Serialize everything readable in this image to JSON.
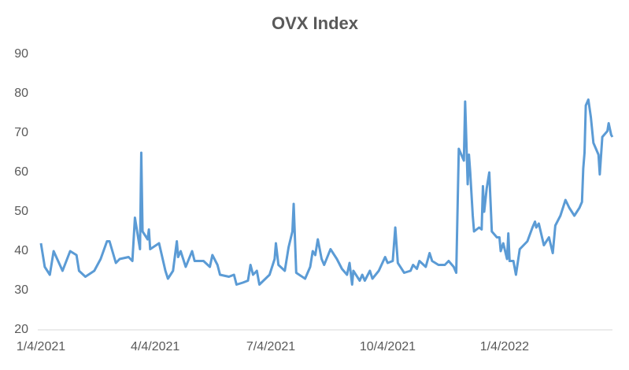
{
  "chart_data": {
    "type": "line",
    "title": "OVX Index",
    "color": "#5b9bd5",
    "x": [
      "2021-01-04",
      "2021-01-07",
      "2021-01-11",
      "2021-01-14",
      "2021-01-21",
      "2021-01-27",
      "2021-02-01",
      "2021-02-03",
      "2021-02-08",
      "2021-02-15",
      "2021-02-20",
      "2021-02-25",
      "2021-02-27",
      "2021-03-04",
      "2021-03-07",
      "2021-03-14",
      "2021-03-17",
      "2021-03-19",
      "2021-03-23",
      "2021-03-24",
      "2021-03-25",
      "2021-03-29",
      "2021-03-30",
      "2021-03-31",
      "2021-04-07",
      "2021-04-12",
      "2021-04-14",
      "2021-04-18",
      "2021-04-21",
      "2021-04-22",
      "2021-04-24",
      "2021-04-28",
      "2021-05-03",
      "2021-05-05",
      "2021-05-12",
      "2021-05-17",
      "2021-05-19",
      "2021-05-23",
      "2021-05-25",
      "2021-06-01",
      "2021-06-05",
      "2021-06-07",
      "2021-06-12",
      "2021-06-16",
      "2021-06-18",
      "2021-06-20",
      "2021-06-23",
      "2021-06-25",
      "2021-07-03",
      "2021-07-07",
      "2021-07-08",
      "2021-07-10",
      "2021-07-15",
      "2021-07-18",
      "2021-07-21",
      "2021-07-22",
      "2021-07-24",
      "2021-07-31",
      "2021-08-04",
      "2021-08-06",
      "2021-08-08",
      "2021-08-10",
      "2021-08-13",
      "2021-08-15",
      "2021-08-20",
      "2021-08-25",
      "2021-08-29",
      "2021-09-02",
      "2021-09-04",
      "2021-09-06",
      "2021-09-07",
      "2021-09-12",
      "2021-09-14",
      "2021-09-16",
      "2021-09-20",
      "2021-09-22",
      "2021-09-27",
      "2021-10-02",
      "2021-10-04",
      "2021-10-08",
      "2021-10-10",
      "2021-10-12",
      "2021-10-17",
      "2021-10-22",
      "2021-10-24",
      "2021-10-27",
      "2021-10-29",
      "2021-11-03",
      "2021-11-06",
      "2021-11-08",
      "2021-11-13",
      "2021-11-18",
      "2021-11-21",
      "2021-11-25",
      "2021-11-27",
      "2021-11-29",
      "2021-12-03",
      "2021-12-04",
      "2021-12-06",
      "2021-12-07",
      "2021-12-08",
      "2021-12-10",
      "2021-12-11",
      "2021-12-15",
      "2021-12-17",
      "2021-12-18",
      "2021-12-19",
      "2021-12-21",
      "2021-12-23",
      "2021-12-25",
      "2021-12-29",
      "2021-12-31",
      "2022-01-01",
      "2022-01-03",
      "2022-01-06",
      "2022-01-07",
      "2022-01-08",
      "2022-01-11",
      "2022-01-13",
      "2022-01-16",
      "2022-01-22",
      "2022-01-26",
      "2022-01-28",
      "2022-01-29",
      "2022-01-31",
      "2022-02-04",
      "2022-02-08",
      "2022-02-11",
      "2022-02-13",
      "2022-02-17",
      "2022-02-21",
      "2022-02-24",
      "2022-02-28",
      "2022-03-04",
      "2022-03-06",
      "2022-03-07",
      "2022-03-08",
      "2022-03-09",
      "2022-03-11",
      "2022-03-13",
      "2022-03-15",
      "2022-03-19",
      "2022-03-20",
      "2022-03-22",
      "2022-03-26",
      "2022-03-27",
      "2022-03-29",
      "2022-03-30"
    ],
    "values": [
      42,
      36,
      34,
      40,
      35,
      40,
      39,
      35,
      33.5,
      35,
      38,
      42.5,
      42.5,
      37,
      38,
      38.5,
      37.5,
      48.5,
      40.5,
      65,
      45,
      43,
      45.5,
      40.5,
      42,
      35,
      33,
      35,
      42.5,
      38.5,
      40,
      36,
      40,
      37.5,
      37.5,
      36,
      39,
      36.5,
      34,
      33.5,
      34,
      31.5,
      32,
      32.5,
      36.5,
      34,
      35,
      31.5,
      34,
      38,
      42,
      36.5,
      35,
      41,
      45,
      52,
      34.5,
      33,
      36,
      40,
      39,
      43,
      38,
      36.5,
      40.5,
      38,
      35.5,
      34,
      37,
      31.5,
      35,
      32.5,
      34,
      32.5,
      35,
      33,
      35,
      38.5,
      37,
      37.5,
      46,
      37,
      34.5,
      35,
      36.5,
      35.5,
      37.5,
      36,
      39.5,
      37.5,
      36.5,
      36.5,
      37.5,
      36,
      34.5,
      66,
      63,
      78,
      57,
      64.5,
      60,
      49,
      45,
      46,
      45.5,
      56.5,
      50,
      56,
      60,
      45,
      43.5,
      43.5,
      40,
      42,
      38,
      44.5,
      37.5,
      37.5,
      34,
      40.5,
      42.5,
      46,
      47.5,
      46,
      47,
      41.5,
      43.5,
      39.5,
      46.5,
      49,
      53,
      51,
      49,
      51,
      52.5,
      61,
      65,
      77,
      78.5,
      74,
      67.5,
      64.5,
      59.5,
      69,
      70.5,
      72.5,
      69.5,
      69
    ],
    "xlim": [
      "2021-01-04",
      "2022-03-30"
    ],
    "xticks": [
      {
        "value": "2021-01-04",
        "label": "1/4/2021"
      },
      {
        "value": "2021-04-04",
        "label": "4/4/2021"
      },
      {
        "value": "2021-07-04",
        "label": "7/4/2021"
      },
      {
        "value": "2021-10-04",
        "label": "10/4/2021"
      },
      {
        "value": "2022-01-04",
        "label": "1/4/2022"
      }
    ],
    "ylim": [
      20,
      90
    ],
    "yticks": [
      20,
      30,
      40,
      50,
      60,
      70,
      80,
      90
    ]
  }
}
